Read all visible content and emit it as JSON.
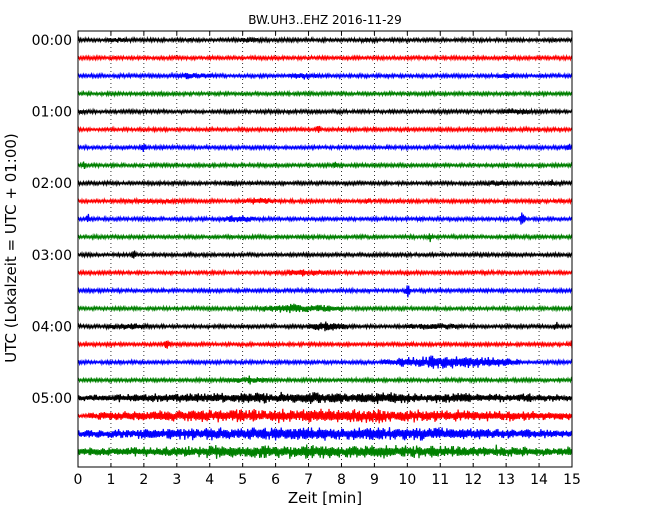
{
  "chart_data": {
    "type": "line",
    "title": "BW.UH3..EHZ 2016-11-29",
    "xlabel": "Zeit  [min]",
    "ylabel": "UTC (Lokalzeit = UTC + 01:00)",
    "xlim": [
      0,
      15
    ],
    "x_ticks": [
      0,
      1,
      2,
      3,
      4,
      5,
      6,
      7,
      8,
      9,
      10,
      11,
      12,
      13,
      14,
      15
    ],
    "x_tick_labels": [
      "0",
      "1",
      "2",
      "3",
      "4",
      "5",
      "6",
      "7",
      "8",
      "9",
      "10",
      "11",
      "12",
      "13",
      "14",
      "15"
    ],
    "y_tick_labels": [
      "00:00",
      "01:00",
      "02:00",
      "03:00",
      "04:00",
      "05:00"
    ],
    "trace_interval_min": 15,
    "trace_colors": [
      "#000000",
      "#ff0000",
      "#0000ff",
      "#008000"
    ],
    "grid": {
      "vertical_dotted": true
    },
    "events": [
      {
        "row": 3,
        "minute": 2.5,
        "amp": 3
      },
      {
        "row": 4,
        "minute": 0.1,
        "amp": 3
      },
      {
        "row": 5,
        "minute": 7.3,
        "amp": 6
      },
      {
        "row": 6,
        "minute": 2.0,
        "amp": 7
      },
      {
        "row": 6,
        "minute": 14.9,
        "amp": 6
      },
      {
        "row": 7,
        "minute": 0.2,
        "amp": 5
      },
      {
        "row": 7,
        "minute": 7.8,
        "amp": 5
      },
      {
        "row": 8,
        "minute": 14.4,
        "amp": 5
      },
      {
        "row": 9,
        "minute": 8.8,
        "amp": 4
      },
      {
        "row": 10,
        "minute": 0.3,
        "amp": 6
      },
      {
        "row": 10,
        "minute": 5.0,
        "amp": 3
      },
      {
        "row": 10,
        "minute": 13.5,
        "amp": 9
      },
      {
        "row": 11,
        "minute": 10.7,
        "amp": 5
      },
      {
        "row": 12,
        "minute": 1.7,
        "amp": 6
      },
      {
        "row": 14,
        "minute": 10.0,
        "amp": 9
      },
      {
        "row": 15,
        "minute": 6.5,
        "amp": 4
      },
      {
        "row": 16,
        "minute": 7.5,
        "amp": 6
      },
      {
        "row": 16,
        "minute": 14.5,
        "amp": 6
      },
      {
        "row": 17,
        "minute": 2.7,
        "amp": 8
      },
      {
        "row": 17,
        "minute": 15.0,
        "amp": 5
      },
      {
        "row": 18,
        "minute": 13.0,
        "amp": 7
      },
      {
        "row": 19,
        "minute": 5.2,
        "amp": 5
      },
      {
        "row": 20,
        "minute": 11.4,
        "amp": 6
      },
      {
        "row": 20,
        "minute": 13.7,
        "amp": 7
      },
      {
        "row": 21,
        "minute": 10.0,
        "amp": 6
      },
      {
        "row": 22,
        "minute": 3.5,
        "amp": 10
      },
      {
        "row": 22,
        "minute": 7.3,
        "amp": 7
      },
      {
        "row": 23,
        "minute": 4.2,
        "amp": 10
      },
      {
        "row": 23,
        "minute": 12.7,
        "amp": 7
      },
      {
        "row": 23,
        "minute": 14.9,
        "amp": 6
      }
    ],
    "noise_bursts": [
      {
        "row": 0,
        "start": 0.8,
        "end": 1.8,
        "amp": 2.5
      },
      {
        "row": 0,
        "start": 4.8,
        "end": 5.6,
        "amp": 3
      },
      {
        "row": 0,
        "start": 8.3,
        "end": 9.2,
        "amp": 2
      },
      {
        "row": 2,
        "start": 2.7,
        "end": 4.2,
        "amp": 3
      },
      {
        "row": 2,
        "start": 6.3,
        "end": 7.4,
        "amp": 3
      },
      {
        "row": 2,
        "start": 12.7,
        "end": 13.4,
        "amp": 3
      },
      {
        "row": 4,
        "start": 12.8,
        "end": 13.8,
        "amp": 3
      },
      {
        "row": 8,
        "start": 4.2,
        "end": 5.0,
        "amp": 2.5
      },
      {
        "row": 8,
        "start": 12.1,
        "end": 13.2,
        "amp": 2.5
      },
      {
        "row": 9,
        "start": 1.2,
        "end": 3.5,
        "amp": 2.5
      },
      {
        "row": 9,
        "start": 4.9,
        "end": 6.0,
        "amp": 3
      },
      {
        "row": 10,
        "start": 4.3,
        "end": 5.4,
        "amp": 3.5
      },
      {
        "row": 13,
        "start": 6.0,
        "end": 7.7,
        "amp": 3
      },
      {
        "row": 15,
        "start": 5.5,
        "end": 8.0,
        "amp": 4
      },
      {
        "row": 16,
        "start": 0.8,
        "end": 2.2,
        "amp": 3
      },
      {
        "row": 16,
        "start": 7.0,
        "end": 8.2,
        "amp": 4.5
      },
      {
        "row": 16,
        "start": 9.9,
        "end": 11.7,
        "amp": 3
      },
      {
        "row": 18,
        "start": 9.2,
        "end": 13.4,
        "amp": 5.5
      },
      {
        "row": 19,
        "start": 4.5,
        "end": 5.8,
        "amp": 3
      },
      {
        "row": 20,
        "start": 0.0,
        "end": 15.0,
        "amp": 5
      },
      {
        "row": 21,
        "start": 0.3,
        "end": 15.0,
        "amp": 6
      },
      {
        "row": 22,
        "start": 0.0,
        "end": 15.0,
        "amp": 6
      },
      {
        "row": 23,
        "start": 0.0,
        "end": 15.0,
        "amp": 6
      }
    ]
  }
}
